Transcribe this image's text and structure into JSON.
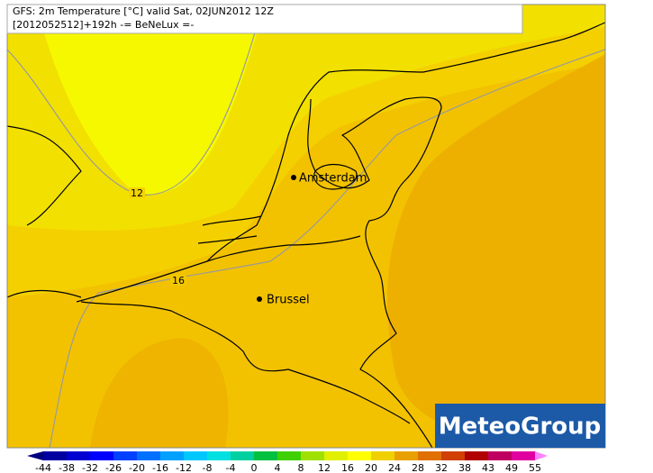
{
  "header": {
    "title": "GFS: 2m Temperature [°C] valid Sat, 02JUN2012 12Z",
    "subtitle": "[2012052512]+192h -= BeNeLux =-"
  },
  "cities": [
    {
      "label": "Amsterdam"
    },
    {
      "label": "Brussel"
    }
  ],
  "contours": [
    {
      "label": "12"
    },
    {
      "label": "16"
    }
  ],
  "logo": "MeteoGroup",
  "legend": {
    "ticks": [
      -44,
      -38,
      -32,
      -26,
      -20,
      -16,
      -12,
      -8,
      -4,
      0,
      4,
      8,
      12,
      16,
      20,
      24,
      28,
      32,
      38,
      43,
      49,
      55
    ],
    "colors": [
      "#000080",
      "#0000a0",
      "#0000d0",
      "#0000ff",
      "#0040ff",
      "#0070ff",
      "#00a0ff",
      "#00c8ff",
      "#00e0e0",
      "#00d0a0",
      "#00c040",
      "#40d000",
      "#a0e000",
      "#e0f000",
      "#ffff00",
      "#f0d000",
      "#e8a000",
      "#e07000",
      "#d04000",
      "#b00000",
      "#c00060",
      "#e000a0",
      "#ff80ff"
    ]
  }
}
